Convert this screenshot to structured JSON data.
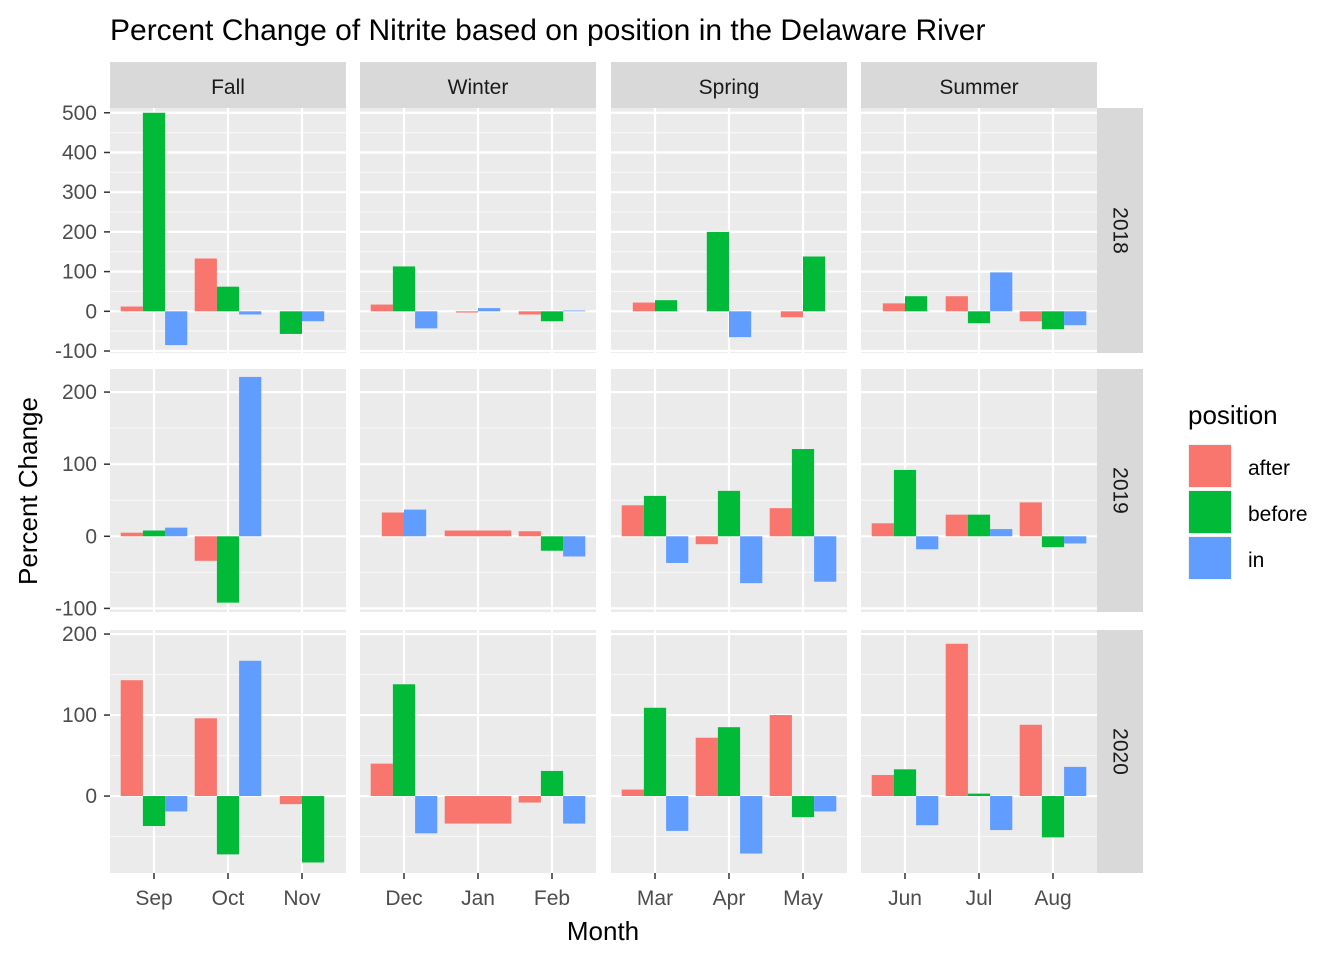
{
  "chart_data": {
    "type": "bar",
    "title": "Percent Change of Nitrite based on position in the Delaware River",
    "xlabel": "Month",
    "ylabel": "Percent Change",
    "legend": {
      "title": "position",
      "placement": "right"
    },
    "grid": true,
    "seasons": [
      {
        "name": "Fall",
        "months": [
          "Sep",
          "Oct",
          "Nov"
        ]
      },
      {
        "name": "Winter",
        "months": [
          "Dec",
          "Jan",
          "Feb"
        ]
      },
      {
        "name": "Spring",
        "months": [
          "Mar",
          "Apr",
          "May"
        ]
      },
      {
        "name": "Summer",
        "months": [
          "Jun",
          "Jul",
          "Aug"
        ]
      }
    ],
    "series": [
      {
        "name": "after",
        "color": "#F8766D"
      },
      {
        "name": "before",
        "color": "#00BA38"
      },
      {
        "name": "in",
        "color": "#619CFF"
      }
    ],
    "years": [
      {
        "year": "2018",
        "ylim": [
          -105,
          512
        ],
        "yticks": [
          -100,
          0,
          100,
          200,
          300,
          400,
          500
        ],
        "values": {
          "Sep": {
            "after": 12,
            "before": 500,
            "in": -85
          },
          "Oct": {
            "after": 133,
            "before": 62,
            "in": -8
          },
          "Nov": {
            "before": -57,
            "in": -25
          },
          "Dec": {
            "after": 17,
            "before": 113,
            "in": -43
          },
          "Jan": {
            "after": -3,
            "in": 8
          },
          "Feb": {
            "after": -8,
            "before": -25,
            "in": 2
          },
          "Mar": {
            "after": 22,
            "before": 28
          },
          "Apr": {
            "before": 200,
            "in": -65
          },
          "May": {
            "after": -15,
            "before": 138
          },
          "Jun": {
            "after": 20,
            "before": 38
          },
          "Jul": {
            "after": 38,
            "before": -30,
            "in": 98
          },
          "Aug": {
            "after": -25,
            "before": -45,
            "in": -35
          }
        }
      },
      {
        "year": "2019",
        "ylim": [
          -105,
          232
        ],
        "yticks": [
          -100,
          0,
          100,
          200
        ],
        "values": {
          "Sep": {
            "after": 5,
            "before": 8,
            "in": 12
          },
          "Oct": {
            "after": -34,
            "before": -92,
            "in": 221
          },
          "Dec": {
            "after": 33,
            "in": 37
          },
          "Jan": {
            "after": 8
          },
          "Feb": {
            "after": 7,
            "before": -20,
            "in": -28
          },
          "Mar": {
            "after": 43,
            "before": 56,
            "in": -37
          },
          "Apr": {
            "after": -11,
            "before": 63,
            "in": -65
          },
          "May": {
            "after": 39,
            "before": 121,
            "in": -63
          },
          "Jun": {
            "after": 18,
            "before": 92,
            "in": -18
          },
          "Jul": {
            "after": 30,
            "before": 30,
            "in": 10
          },
          "Aug": {
            "after": 47,
            "before": -15,
            "in": -10
          }
        }
      },
      {
        "year": "2020",
        "ylim": [
          -95,
          205
        ],
        "yticks": [
          0,
          100,
          200
        ],
        "values": {
          "Sep": {
            "after": 143,
            "before": -37,
            "in": -19
          },
          "Oct": {
            "after": 96,
            "before": -72,
            "in": 167
          },
          "Nov": {
            "after": -10,
            "before": -82
          },
          "Dec": {
            "after": 40,
            "before": 138,
            "in": -46
          },
          "Jan": {
            "after": -34
          },
          "Feb": {
            "after": -8,
            "before": 31,
            "in": -34
          },
          "Mar": {
            "after": 8,
            "before": 109,
            "in": -43
          },
          "Apr": {
            "after": 72,
            "before": 85,
            "in": -71
          },
          "May": {
            "after": 100,
            "before": -26,
            "in": -19
          },
          "Jun": {
            "after": 26,
            "before": 33,
            "in": -36
          },
          "Jul": {
            "after": 188,
            "before": 3,
            "in": -42
          },
          "Aug": {
            "after": 88,
            "before": -51,
            "in": 36
          }
        }
      }
    ]
  }
}
